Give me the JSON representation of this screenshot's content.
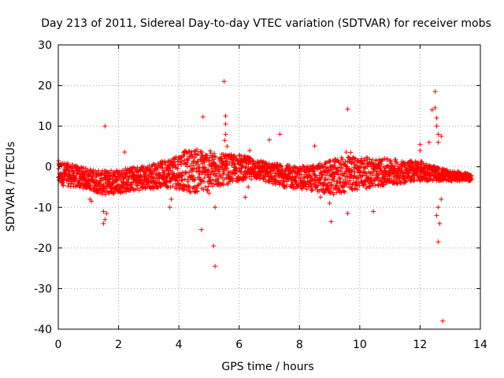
{
  "chart_data": {
    "type": "scatter",
    "title": "Day 213 of 2011, Sidereal Day-to-day VTEC variation (SDTVAR) for receiver mobs",
    "xlabel": "GPS time / hours",
    "ylabel": "SDTVAR / TECUs",
    "xlim": [
      0,
      14
    ],
    "ylim": [
      -40,
      30
    ],
    "xticks": [
      "0",
      "2",
      "4",
      "6",
      "8",
      "10",
      "12",
      "14"
    ],
    "yticks": [
      "-40",
      "-30",
      "-20",
      "-10",
      "0",
      "10",
      "20",
      "30"
    ],
    "grid": true,
    "marker": "+",
    "color": "#ff0000",
    "series": [
      {
        "name": "SDTVAR",
        "band_x": [
          0.0,
          0.5,
          1.0,
          1.5,
          2.0,
          2.5,
          3.0,
          3.5,
          4.0,
          4.5,
          5.0,
          5.5,
          6.0,
          6.5,
          7.0,
          7.5,
          8.0,
          8.5,
          9.0,
          9.5,
          10.0,
          10.5,
          11.0,
          11.5,
          12.0,
          12.5,
          13.0,
          13.5,
          13.7
        ],
        "band_low": [
          -4.5,
          -5.0,
          -5.5,
          -7.0,
          -6.5,
          -6.0,
          -5.5,
          -5.0,
          -5.5,
          -6.5,
          -6.0,
          -4.5,
          -3.5,
          -3.0,
          -4.0,
          -5.0,
          -5.5,
          -6.0,
          -7.0,
          -6.5,
          -5.5,
          -5.0,
          -4.5,
          -4.0,
          -3.5,
          -3.5,
          -3.5,
          -3.5,
          -3.5
        ],
        "band_high": [
          1.5,
          0.5,
          -0.5,
          -1.0,
          -0.5,
          0.0,
          0.5,
          1.5,
          3.5,
          4.5,
          4.0,
          3.0,
          3.0,
          2.0,
          1.0,
          0.5,
          0.0,
          0.5,
          1.5,
          2.5,
          2.5,
          2.0,
          2.0,
          1.5,
          1.5,
          0.0,
          -1.0,
          -1.5,
          -2.0
        ],
        "outliers": [
          [
            1.55,
            10.0
          ],
          [
            2.2,
            3.6
          ],
          [
            1.5,
            -11.0
          ],
          [
            1.55,
            -13.0
          ],
          [
            1.6,
            -11.5
          ],
          [
            1.5,
            -14.0
          ],
          [
            1.05,
            -8.0
          ],
          [
            1.1,
            -8.5
          ],
          [
            1.2,
            -6.0
          ],
          [
            3.7,
            -10.0
          ],
          [
            3.75,
            -8.0
          ],
          [
            4.0,
            -4.0
          ],
          [
            4.8,
            12.3
          ],
          [
            4.75,
            -15.5
          ],
          [
            5.0,
            -6.5
          ],
          [
            5.15,
            -19.5
          ],
          [
            5.2,
            -24.5
          ],
          [
            5.2,
            -10.0
          ],
          [
            5.5,
            21.0
          ],
          [
            5.55,
            12.5
          ],
          [
            5.55,
            10.5
          ],
          [
            5.55,
            8.0
          ],
          [
            5.52,
            6.5
          ],
          [
            5.6,
            5.0
          ],
          [
            6.2,
            -7.5
          ],
          [
            6.3,
            -5.0
          ],
          [
            6.35,
            4.0
          ],
          [
            7.0,
            6.6
          ],
          [
            7.35,
            8.0
          ],
          [
            7.2,
            -3.5
          ],
          [
            8.5,
            5.1
          ],
          [
            8.7,
            -7.5
          ],
          [
            9.0,
            -9.0
          ],
          [
            9.05,
            -13.5
          ],
          [
            9.6,
            14.2
          ],
          [
            9.55,
            3.6
          ],
          [
            9.6,
            -11.5
          ],
          [
            9.7,
            3.5
          ],
          [
            10.45,
            -11.0
          ],
          [
            10.6,
            -4.5
          ],
          [
            12.0,
            5.5
          ],
          [
            12.0,
            4.0
          ],
          [
            12.3,
            6.0
          ],
          [
            12.4,
            14.0
          ],
          [
            12.5,
            18.5
          ],
          [
            12.5,
            14.5
          ],
          [
            12.55,
            12.0
          ],
          [
            12.55,
            10.0
          ],
          [
            12.6,
            8.0
          ],
          [
            12.6,
            6.0
          ],
          [
            12.7,
            7.5
          ],
          [
            12.55,
            -12.0
          ],
          [
            12.6,
            -10.0
          ],
          [
            12.6,
            -18.5
          ],
          [
            12.65,
            -14.0
          ],
          [
            12.7,
            -8.0
          ],
          [
            12.75,
            -38.0
          ],
          [
            13.7,
            -3.0
          ]
        ]
      }
    ]
  }
}
